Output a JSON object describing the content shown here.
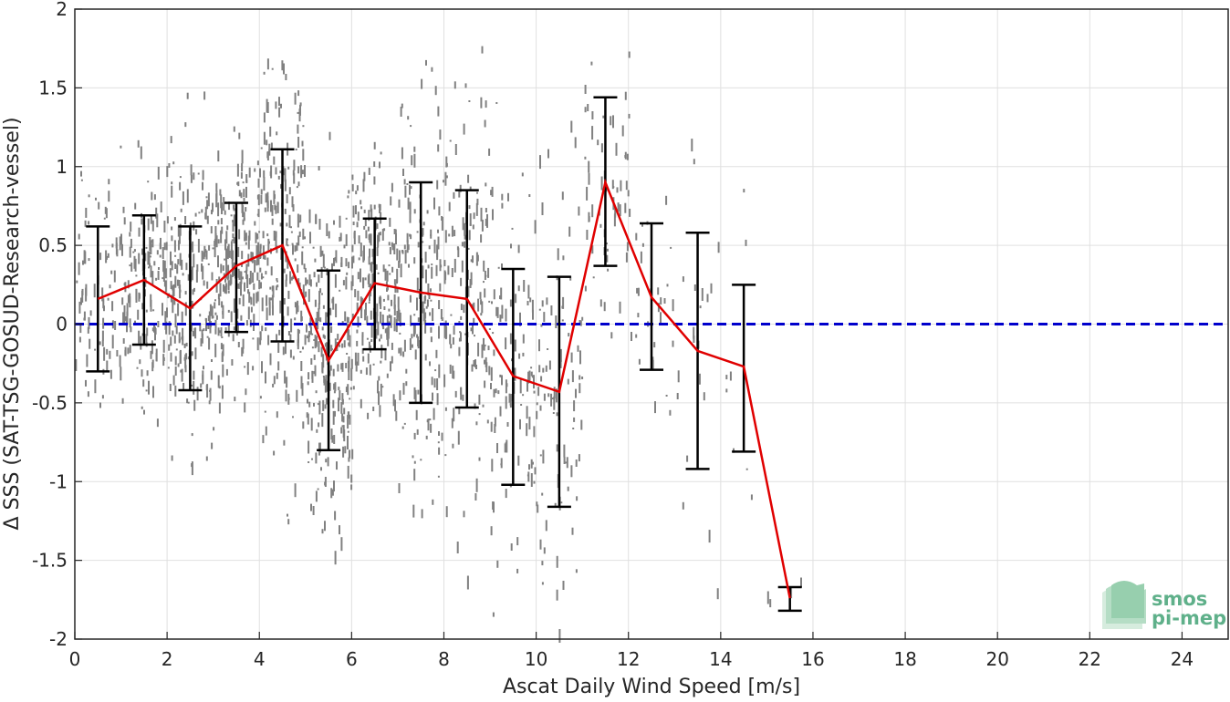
{
  "chart_data": {
    "type": "scatter",
    "xlabel": "Ascat Daily Wind Speed [m/s]",
    "ylabel": "Δ SSS (SAT-TSG-GOSUD-Research-vessel)",
    "xlim": [
      0,
      25
    ],
    "ylim": [
      -2,
      2
    ],
    "xticks": [
      0,
      2,
      4,
      6,
      8,
      10,
      12,
      14,
      16,
      18,
      20,
      22,
      24
    ],
    "yticks": [
      -2,
      -1.5,
      -1,
      -0.5,
      0,
      0.5,
      1,
      1.5,
      2
    ],
    "grid": true,
    "reference_line": {
      "y": 0,
      "color": "#0000cc",
      "style": "dashed"
    },
    "series": [
      {
        "type": "line",
        "color": "#e00000",
        "x": [
          0.5,
          1.5,
          2.5,
          3.5,
          4.5,
          5.5,
          6.5,
          7.5,
          8.5,
          9.5,
          10.5,
          11.5,
          12.5,
          13.5,
          14.5,
          15.5
        ],
        "y": [
          0.16,
          0.28,
          0.1,
          0.37,
          0.5,
          -0.23,
          0.26,
          0.2,
          0.16,
          -0.33,
          -0.43,
          0.9,
          0.17,
          -0.17,
          -0.27,
          -1.74
        ]
      }
    ],
    "error_bars": {
      "color": "#000000",
      "x": [
        0.5,
        1.5,
        2.5,
        3.5,
        4.5,
        5.5,
        6.5,
        7.5,
        8.5,
        9.5,
        10.5,
        11.5,
        12.5,
        13.5,
        14.5,
        15.5
      ],
      "upper": [
        0.62,
        0.69,
        0.62,
        0.77,
        1.11,
        0.34,
        0.67,
        0.9,
        0.85,
        0.35,
        0.3,
        1.44,
        0.64,
        0.58,
        0.25,
        -1.67
      ],
      "lower": [
        -0.3,
        -0.13,
        -0.42,
        -0.05,
        -0.11,
        -0.8,
        -0.16,
        -0.5,
        -0.53,
        -1.02,
        -1.16,
        0.37,
        -0.29,
        -0.92,
        -0.81,
        -1.82
      ]
    },
    "scatter_points": {
      "color": "#808080",
      "description_count": 2400,
      "x_range": [
        0,
        16
      ],
      "y_range": [
        -2,
        2
      ]
    }
  },
  "logo": {
    "line1": "smos",
    "line2": "pi-mep"
  }
}
